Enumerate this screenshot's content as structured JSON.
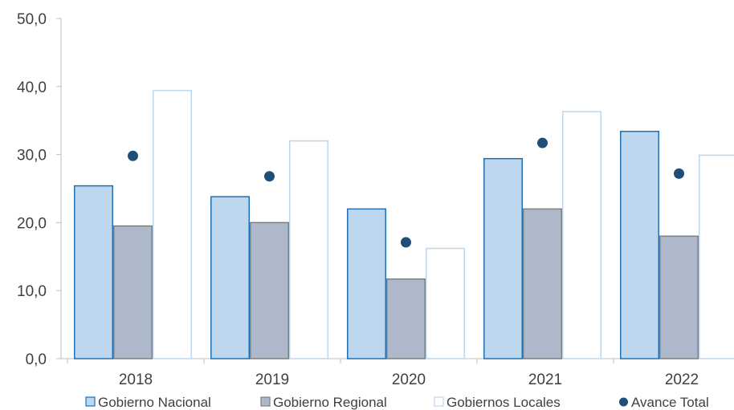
{
  "chart_data": {
    "type": "bar",
    "categories": [
      "2018",
      "2019",
      "2020",
      "2021",
      "2022"
    ],
    "series": [
      {
        "name": "Gobierno Nacional",
        "kind": "bar",
        "values": [
          25.4,
          23.8,
          22.0,
          29.4,
          33.4
        ],
        "fill": "#BDD7EE",
        "stroke": "#1F6FB5"
      },
      {
        "name": "Gobierno Regional",
        "kind": "bar",
        "values": [
          19.5,
          20.0,
          11.7,
          22.0,
          18.0
        ],
        "fill": "#ADB9CA",
        "stroke": "#7F7F7F"
      },
      {
        "name": "Gobiernos Locales",
        "kind": "bar",
        "values": [
          39.4,
          32.0,
          16.2,
          36.3,
          29.9
        ],
        "fill": "#FFFFFF",
        "stroke": "#BDD7EE"
      },
      {
        "name": "Avance Total",
        "kind": "point",
        "values": [
          29.8,
          26.8,
          17.1,
          31.7,
          27.2
        ],
        "fill": "#1F4E79"
      }
    ],
    "y_ticks": [
      "0,0",
      "10,0",
      "20,0",
      "30,0",
      "40,0",
      "50,0"
    ],
    "ylim": [
      0,
      50
    ],
    "grid": false,
    "legend_position": "bottom",
    "title": "",
    "xlabel": "",
    "ylabel": ""
  }
}
